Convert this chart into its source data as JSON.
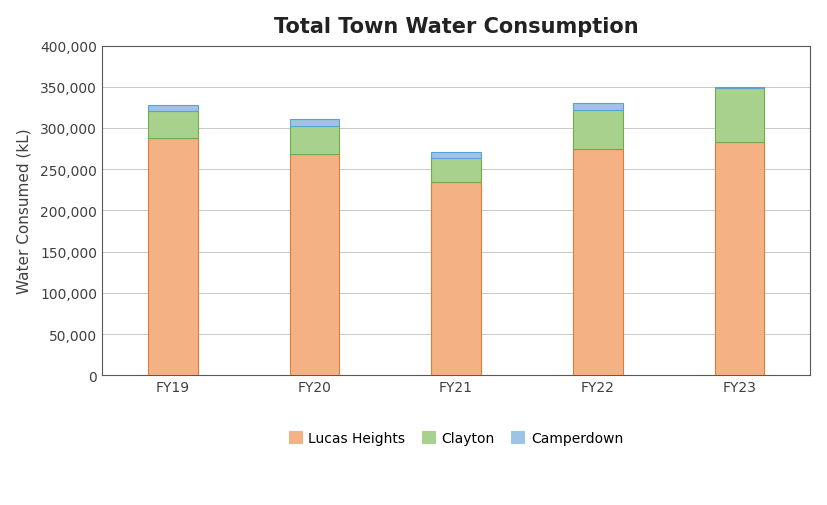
{
  "title": "Total Town Water Consumption",
  "ylabel": "Water Consumed (kL)",
  "categories": [
    "FY19",
    "FY20",
    "FY21",
    "FY22",
    "FY23"
  ],
  "series": {
    "Lucas Heights": [
      288000,
      268000,
      235000,
      275000,
      283000
    ],
    "Clayton": [
      32000,
      35000,
      28000,
      47000,
      65000
    ],
    "Camperdown": [
      8000,
      8000,
      8000,
      8000,
      2000
    ]
  },
  "colors": {
    "Lucas Heights": "#F4B183",
    "Clayton": "#A9D18E",
    "Camperdown": "#9DC3E6"
  },
  "edge_colors": {
    "Lucas Heights": "#E07B39",
    "Clayton": "#70AD47",
    "Camperdown": "#5BA3D0"
  },
  "ylim": [
    0,
    400000
  ],
  "yticks": [
    0,
    50000,
    100000,
    150000,
    200000,
    250000,
    300000,
    350000,
    400000
  ],
  "bar_width": 0.35,
  "background_color": "#FFFFFF",
  "plot_bg_color": "#FFFFFF",
  "grid_color": "#C0C0C0",
  "spine_color": "#595959",
  "title_fontsize": 15,
  "axis_fontsize": 11,
  "tick_fontsize": 10,
  "legend_fontsize": 10,
  "figsize": [
    8.27,
    5.06
  ],
  "dpi": 100
}
